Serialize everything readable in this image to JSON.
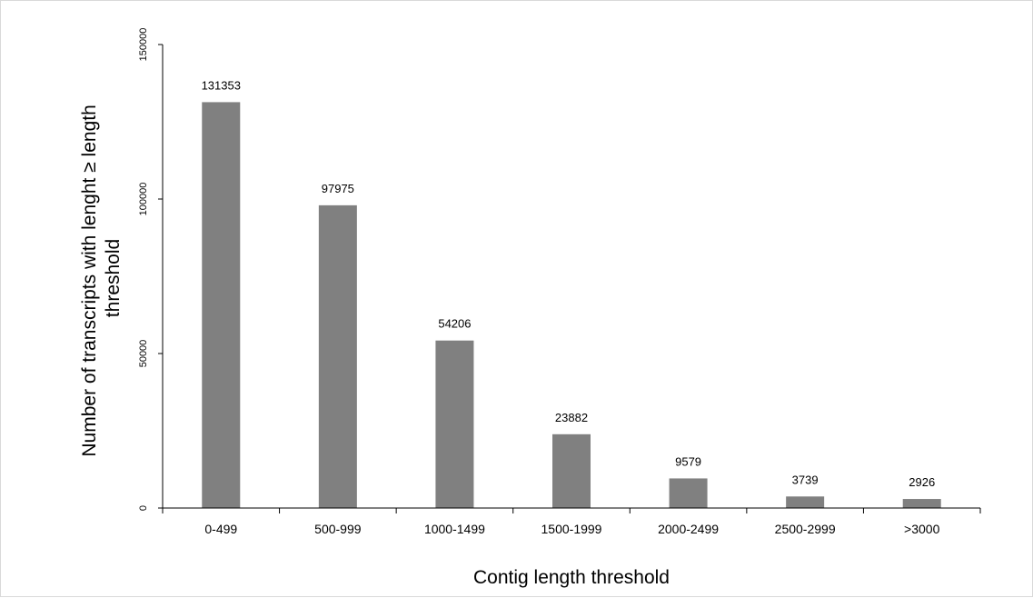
{
  "chart_data": {
    "type": "bar",
    "title": "",
    "xlabel": "Contig length threshold",
    "ylabel_lines": [
      "Number of transcripts with lenght ≥ length",
      "threshold"
    ],
    "categories": [
      "0-499",
      "500-999",
      "1000-1499",
      "1500-1999",
      "2000-2499",
      "2500-2999",
      ">3000"
    ],
    "values": [
      131353,
      97975,
      54206,
      23882,
      9579,
      3739,
      2926
    ],
    "data_labels": [
      "131353",
      "97975",
      "54206",
      "23882",
      "9579",
      "3739",
      "2926"
    ],
    "ylim": [
      0,
      150000
    ],
    "yticks": [
      0,
      50000,
      100000,
      150000
    ],
    "ytick_labels": [
      "0",
      "50000",
      "100000",
      "150000"
    ],
    "bar_color": "#808080",
    "grid": false,
    "legend": "none"
  }
}
